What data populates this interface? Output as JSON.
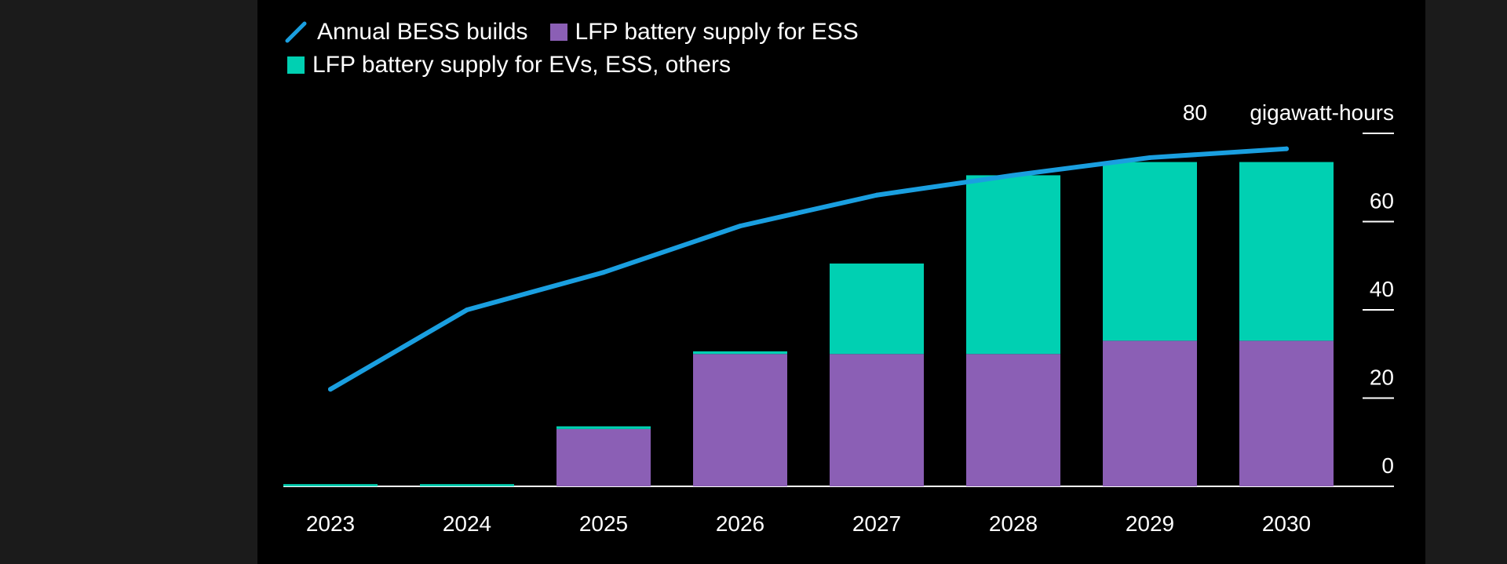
{
  "chart_data": {
    "type": "bar",
    "stacked": true,
    "categories": [
      "2023",
      "2024",
      "2025",
      "2026",
      "2027",
      "2028",
      "2029",
      "2030"
    ],
    "series": [
      {
        "name": "LFP battery supply for ESS",
        "kind": "bar",
        "color": "#8b5fb5",
        "values": [
          0,
          0,
          13,
          30,
          30,
          30,
          33,
          33
        ]
      },
      {
        "name": "LFP battery supply for EVs, ESS, others",
        "kind": "bar",
        "color": "#00d0b2",
        "values": [
          0.5,
          0.5,
          0.6,
          0.6,
          20.5,
          40.5,
          40.5,
          40.5
        ]
      },
      {
        "name": "Annual BESS builds",
        "kind": "line",
        "color": "#1a9fe0",
        "values": [
          22,
          40,
          48.5,
          59,
          66,
          70.5,
          74.5,
          76.5
        ]
      }
    ],
    "ylabel_unit": "gigawatt-hours",
    "ylim": [
      0,
      80
    ],
    "yticks": [
      "0",
      "20",
      "40",
      "60",
      "80"
    ],
    "axis_position": "right",
    "grid": false,
    "legend_position": "top-left",
    "background": "#000000"
  }
}
